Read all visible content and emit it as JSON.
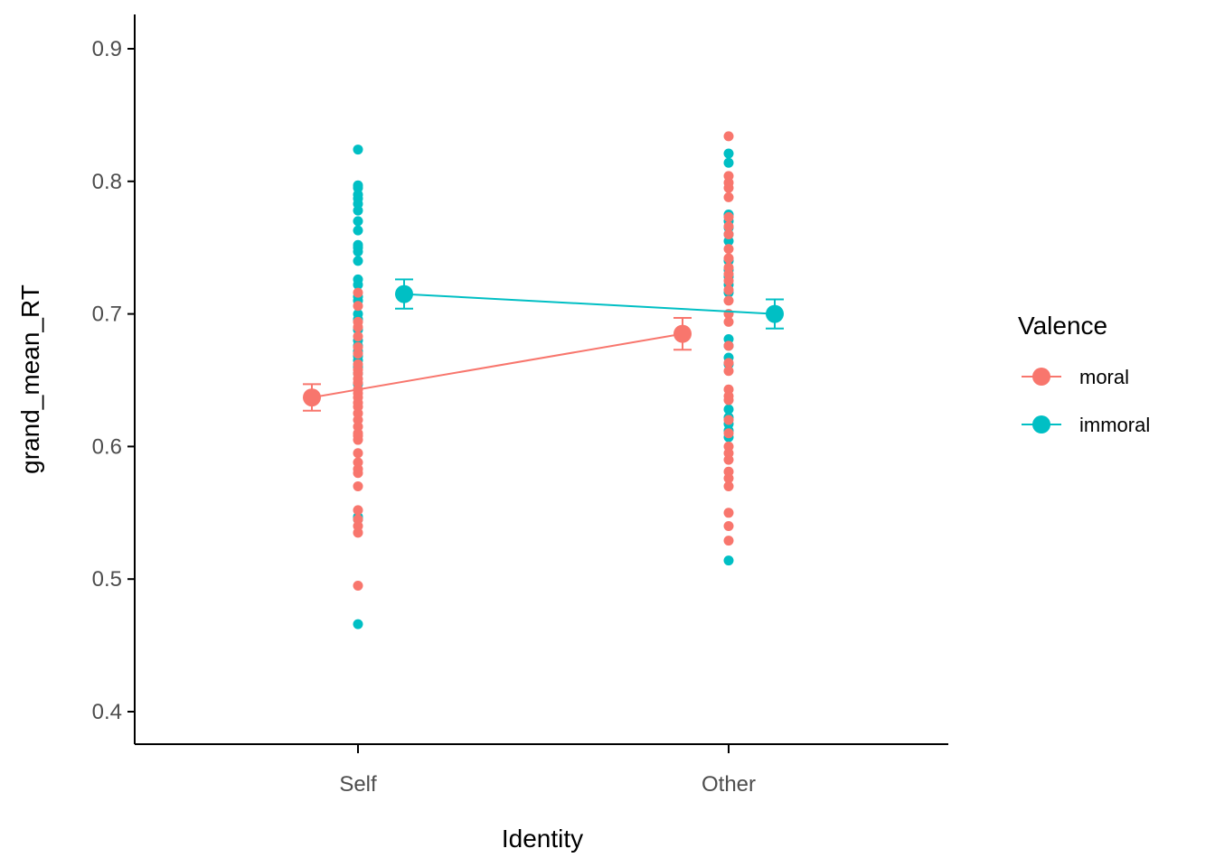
{
  "chart_data": {
    "type": "scatter",
    "xlabel": "Identity",
    "ylabel": "grand_mean_RT",
    "categories": [
      "Self",
      "Other"
    ],
    "ylim": [
      0.375,
      0.925
    ],
    "yticks": [
      0.4,
      0.5,
      0.6,
      0.7,
      0.8,
      0.9
    ],
    "ytick_labels": [
      "0.4",
      "0.5",
      "0.6",
      "0.7",
      "0.8",
      "0.9"
    ],
    "grid": false,
    "legend": {
      "title": "Valence",
      "position": "right"
    },
    "series": [
      {
        "name": "moral",
        "color": "#F8766D",
        "means": [
          0.637,
          0.685
        ],
        "errors": [
          [
            0.627,
            0.647
          ],
          [
            0.673,
            0.697
          ]
        ],
        "points": [
          [
            0.495,
            0.535,
            0.54,
            0.545,
            0.552,
            0.57,
            0.58,
            0.583,
            0.588,
            0.595,
            0.605,
            0.608,
            0.61,
            0.615,
            0.62,
            0.625,
            0.63,
            0.633,
            0.637,
            0.64,
            0.643,
            0.648,
            0.651,
            0.655,
            0.658,
            0.662,
            0.67,
            0.675,
            0.683,
            0.69,
            0.694,
            0.706,
            0.716
          ],
          [
            0.529,
            0.54,
            0.55,
            0.57,
            0.576,
            0.581,
            0.59,
            0.595,
            0.6,
            0.61,
            0.62,
            0.635,
            0.638,
            0.643,
            0.657,
            0.663,
            0.676,
            0.694,
            0.7,
            0.71,
            0.718,
            0.725,
            0.73,
            0.735,
            0.742,
            0.749,
            0.76,
            0.766,
            0.773,
            0.788,
            0.795,
            0.799,
            0.804,
            0.834
          ]
        ]
      },
      {
        "name": "immoral",
        "color": "#00BFC4",
        "means": [
          0.715,
          0.7
        ],
        "errors": [
          [
            0.704,
            0.726
          ],
          [
            0.689,
            0.711
          ]
        ],
        "points": [
          [
            0.466,
            0.545,
            0.547,
            0.647,
            0.655,
            0.66,
            0.665,
            0.668,
            0.672,
            0.676,
            0.68,
            0.688,
            0.696,
            0.7,
            0.71,
            0.713,
            0.722,
            0.726,
            0.74,
            0.747,
            0.75,
            0.752,
            0.763,
            0.77,
            0.778,
            0.783,
            0.787,
            0.79,
            0.795,
            0.797,
            0.824
          ],
          [
            0.514,
            0.607,
            0.612,
            0.617,
            0.622,
            0.628,
            0.662,
            0.667,
            0.676,
            0.681,
            0.716,
            0.722,
            0.728,
            0.733,
            0.74,
            0.755,
            0.76,
            0.765,
            0.77,
            0.775,
            0.814,
            0.821
          ]
        ]
      }
    ]
  }
}
